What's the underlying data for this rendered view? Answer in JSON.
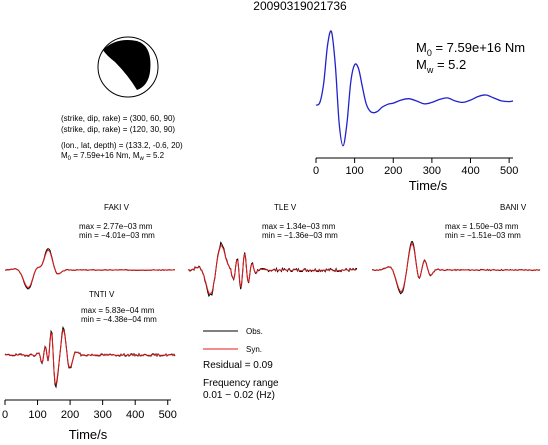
{
  "chart_data": {
    "type": "line",
    "title": "20090319021736",
    "mechanism": {
      "line1": "(strike, dip, rake) = (300, 60, 90)",
      "line2": "(strike, dip, rake) = (120, 30, 90)",
      "location": "(lon., lat, depth) = (133.2, -0.6, 20)",
      "moment_short_prefix": "M",
      "moment_short_sub": "0",
      "moment_short_rest": " = 7.59e+16 Nm, M",
      "moment_short_sub2": "w",
      "moment_short_end": " = 5.2"
    },
    "stf": {
      "moment_prefix": "M",
      "moment_sub": "0",
      "moment_value": " = 7.59e+16 Nm",
      "mw_prefix": "M",
      "mw_sub": "w",
      "mw_value": " = 5.2",
      "xlabel": "Time/s",
      "xlim": [
        0,
        510
      ],
      "ylim": [
        -0.58,
        1.05
      ],
      "x_ticks": [
        0,
        100,
        200,
        300,
        400,
        500
      ],
      "x_tick_labels": [
        "0",
        "100",
        "200",
        "300",
        "400",
        "500"
      ],
      "x": [
        0,
        10,
        20,
        30,
        40,
        50,
        60,
        70,
        80,
        90,
        100,
        110,
        120,
        130,
        140,
        150,
        160,
        170,
        180,
        190,
        200,
        220,
        240,
        260,
        280,
        300,
        320,
        340,
        360,
        380,
        400,
        420,
        440,
        460,
        480,
        500,
        510
      ],
      "y": [
        0.0,
        0.04,
        0.3,
        0.82,
        1.0,
        0.55,
        -0.25,
        -0.55,
        -0.25,
        0.32,
        0.55,
        0.5,
        0.25,
        0.02,
        -0.08,
        -0.1,
        -0.08,
        -0.03,
        0.0,
        0.02,
        0.03,
        0.07,
        0.09,
        0.06,
        0.02,
        0.04,
        0.08,
        0.1,
        0.06,
        0.04,
        0.07,
        0.12,
        0.14,
        0.1,
        0.06,
        0.05,
        0.06
      ]
    },
    "stations": [
      {
        "name": "FAKI V",
        "max": "max = 2.77e−03 mm",
        "min": "min = −4.01e−03 mm"
      },
      {
        "name": "TLE V",
        "max": "max = 1.34e−03 mm",
        "min": "min = −1.36e−03 mm"
      },
      {
        "name": "BANI V",
        "max": "max = 1.50e−03 mm",
        "min": "min = −1.51e−03 mm"
      },
      {
        "name": "TNTI V",
        "max": "max = 5.83e−04 mm",
        "min": "min = −4.38e−04 mm"
      }
    ],
    "legend": {
      "obs": "Obs.",
      "syn": "Syn.",
      "residual": "Residual = 0.09",
      "freq_line1": "Frequency range",
      "freq_line2": "0.01 − 0.02 (Hz)"
    },
    "wave_axis": {
      "xlabel": "Time/s",
      "xlim": [
        0,
        510
      ],
      "x_ticks": [
        0,
        100,
        200,
        300,
        400,
        500
      ],
      "x_tick_labels": [
        "0",
        "100",
        "200",
        "300",
        "400",
        "500"
      ]
    },
    "colors": {
      "observed": "#000000",
      "synthetic": "#e41a1c",
      "stf": "#2222cc",
      "beachball": "#000000"
    }
  }
}
